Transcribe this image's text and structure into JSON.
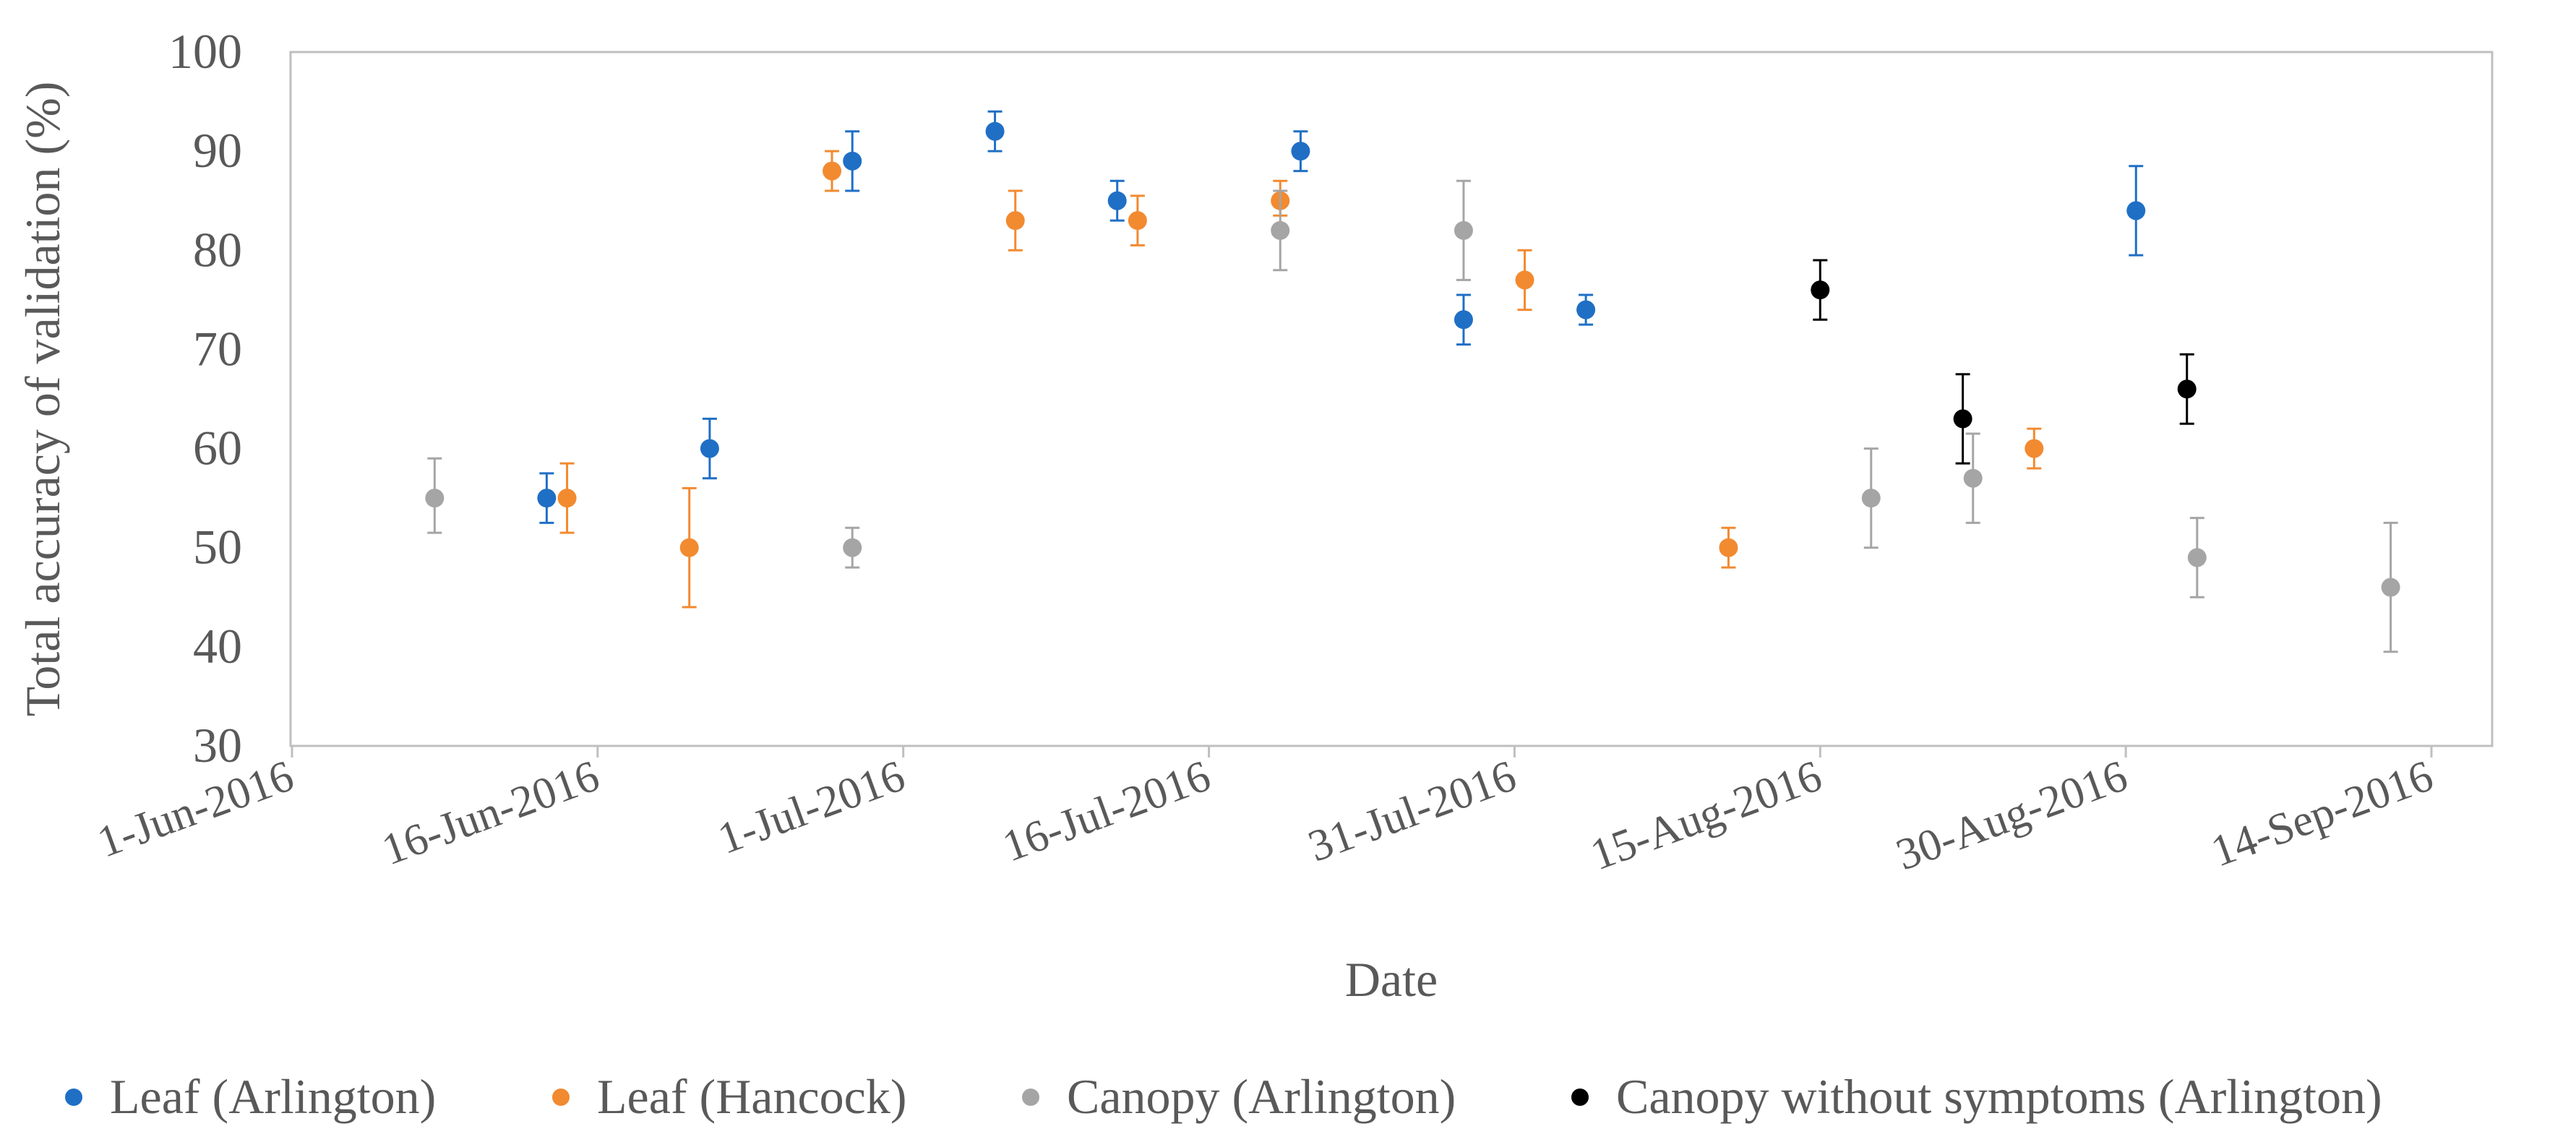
{
  "chart_data": {
    "type": "scatter",
    "title": "",
    "xlabel": "Date",
    "ylabel": "Total accuracy of validation (%)",
    "ylim": [
      30,
      100
    ],
    "yticks": [
      "30",
      "40",
      "50",
      "60",
      "70",
      "80",
      "90",
      "100"
    ],
    "xticks": [
      "1-Jun-2016",
      "16-Jun-2016",
      "1-Jul-2016",
      "16-Jul-2016",
      "31-Jul-2016",
      "15-Aug-2016",
      "30-Aug-2016",
      "14-Sep-2016"
    ],
    "x_unit": "days since 1-Jun-2016",
    "xlim": [
      0,
      105
    ],
    "grid": false,
    "legend_position": "bottom",
    "error_bars": true,
    "series": [
      {
        "name": "Leaf (Arlington)",
        "color": "#1F6FC5",
        "points": [
          {
            "x": 12.5,
            "y": 55,
            "err_low": 52.5,
            "err_high": 57.5
          },
          {
            "x": 20.5,
            "y": 60,
            "err_low": 57.0,
            "err_high": 63.0
          },
          {
            "x": 27.5,
            "y": 89,
            "err_low": 86.0,
            "err_high": 92.0
          },
          {
            "x": 34.5,
            "y": 92,
            "err_low": 90.0,
            "err_high": 94.0
          },
          {
            "x": 40.5,
            "y": 85,
            "err_low": 83.0,
            "err_high": 87.0
          },
          {
            "x": 49.5,
            "y": 90,
            "err_low": 88.0,
            "err_high": 92.0
          },
          {
            "x": 57.5,
            "y": 73,
            "err_low": 70.5,
            "err_high": 75.5
          },
          {
            "x": 63.5,
            "y": 74,
            "err_low": 72.5,
            "err_high": 75.5
          },
          {
            "x": 90.5,
            "y": 84,
            "err_low": 79.5,
            "err_high": 88.5
          }
        ]
      },
      {
        "name": "Leaf (Hancock)",
        "color": "#F28A30",
        "points": [
          {
            "x": 13.5,
            "y": 55,
            "err_low": 51.5,
            "err_high": 58.5
          },
          {
            "x": 19.5,
            "y": 50,
            "err_low": 44.0,
            "err_high": 56.0
          },
          {
            "x": 26.5,
            "y": 88,
            "err_low": 86.0,
            "err_high": 90.0
          },
          {
            "x": 35.5,
            "y": 83,
            "err_low": 80.0,
            "err_high": 86.0
          },
          {
            "x": 41.5,
            "y": 83,
            "err_low": 80.5,
            "err_high": 85.5
          },
          {
            "x": 48.5,
            "y": 85,
            "err_low": 83.5,
            "err_high": 87.0
          },
          {
            "x": 60.5,
            "y": 77,
            "err_low": 74.0,
            "err_high": 80.0
          },
          {
            "x": 70.5,
            "y": 50,
            "err_low": 48.0,
            "err_high": 52.0
          },
          {
            "x": 85.5,
            "y": 60,
            "err_low": 58.0,
            "err_high": 62.0
          }
        ]
      },
      {
        "name": "Canopy (Arlington)",
        "color": "#A5A5A5",
        "points": [
          {
            "x": 7.0,
            "y": 55,
            "err_low": 51.5,
            "err_high": 59.0
          },
          {
            "x": 27.5,
            "y": 50,
            "err_low": 48.0,
            "err_high": 52.0
          },
          {
            "x": 48.5,
            "y": 82,
            "err_low": 78.0,
            "err_high": 86.0
          },
          {
            "x": 57.5,
            "y": 82,
            "err_low": 77.0,
            "err_high": 87.0
          },
          {
            "x": 77.5,
            "y": 55,
            "err_low": 50.0,
            "err_high": 60.0
          },
          {
            "x": 82.5,
            "y": 57,
            "err_low": 52.5,
            "err_high": 61.5
          },
          {
            "x": 93.5,
            "y": 49,
            "err_low": 45.0,
            "err_high": 53.0
          },
          {
            "x": 103.0,
            "y": 46,
            "err_low": 39.5,
            "err_high": 52.5
          }
        ]
      },
      {
        "name": "Canopy without symptoms (Arlington)",
        "color": "#000000",
        "points": [
          {
            "x": 75.0,
            "y": 76,
            "err_low": 73.0,
            "err_high": 79.0
          },
          {
            "x": 82.0,
            "y": 63,
            "err_low": 58.5,
            "err_high": 67.5
          },
          {
            "x": 93.0,
            "y": 66,
            "err_low": 62.5,
            "err_high": 69.5
          }
        ]
      }
    ]
  }
}
